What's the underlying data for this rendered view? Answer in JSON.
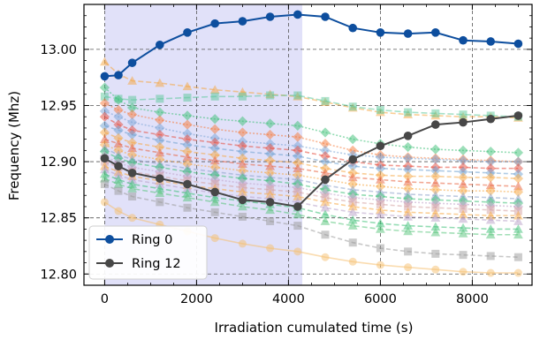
{
  "chart_data": {
    "type": "line",
    "xlabel": "Irradiation cumulated time (s)",
    "ylabel": "Frequency (Mhz)",
    "xlim": [
      -450,
      9300
    ],
    "ylim": [
      12.79,
      13.04
    ],
    "xticks": [
      0,
      2000,
      4000,
      6000,
      8000
    ],
    "xtick_labels": [
      "0",
      "2000",
      "4000",
      "6000",
      "8000"
    ],
    "yticks": [
      12.8,
      12.85,
      12.9,
      12.95,
      13.0
    ],
    "ytick_labels": [
      "12.80",
      "12.85",
      "12.90",
      "12.95",
      "13.00"
    ],
    "grid": true,
    "legend_position": "lower-left",
    "shaded_region": {
      "x_start": 0,
      "x_end": 4300,
      "color": "#c8c8f4"
    },
    "series": [
      {
        "name": "Ring 0",
        "color": "#0d4e9e",
        "x": [
          0,
          300,
          600,
          1200,
          1800,
          2400,
          3000,
          3600,
          4200,
          4800,
          5400,
          6000,
          6600,
          7200,
          7800,
          8400,
          9000
        ],
        "y": [
          12.976,
          12.977,
          12.988,
          13.004,
          13.015,
          13.023,
          13.025,
          13.029,
          13.031,
          13.029,
          13.019,
          13.015,
          13.014,
          13.015,
          13.008,
          13.007,
          13.005
        ]
      },
      {
        "name": "Ring 12",
        "color": "#474747",
        "x": [
          0,
          300,
          600,
          1200,
          1800,
          2400,
          3000,
          3600,
          4200,
          4800,
          5400,
          6000,
          6600,
          7200,
          7800,
          8400,
          9000
        ],
        "y": [
          12.903,
          12.896,
          12.89,
          12.885,
          12.88,
          12.873,
          12.866,
          12.864,
          12.86,
          12.884,
          12.902,
          12.914,
          12.923,
          12.933,
          12.935,
          12.938,
          12.941
        ]
      }
    ],
    "background_series": [
      {
        "color": "#f5a540",
        "marker": "triangle",
        "dash": "6,3",
        "y": [
          12.989,
          12.978,
          12.972,
          12.97,
          12.967,
          12.964,
          12.962,
          12.96,
          12.958,
          12.953,
          12.948,
          12.944,
          12.942,
          12.941,
          12.94,
          12.94,
          12.939
        ]
      },
      {
        "color": "#5cc89a",
        "marker": "square",
        "dash": "7,3",
        "y": [
          12.958,
          12.956,
          12.955,
          12.956,
          12.957,
          12.958,
          12.958,
          12.959,
          12.959,
          12.954,
          12.949,
          12.946,
          12.944,
          12.943,
          12.942,
          12.941,
          12.94
        ]
      },
      {
        "color": "#3bbf75",
        "marker": "diamond",
        "dash": "2,2",
        "y": [
          12.966,
          12.955,
          12.948,
          12.944,
          12.941,
          12.938,
          12.936,
          12.934,
          12.932,
          12.926,
          12.92,
          12.916,
          12.913,
          12.911,
          12.91,
          12.909,
          12.908
        ]
      },
      {
        "color": "#f57a3a",
        "marker": "diamond",
        "dash": "2,2",
        "y": [
          12.952,
          12.946,
          12.942,
          12.937,
          12.933,
          12.929,
          12.926,
          12.924,
          12.922,
          12.916,
          12.91,
          12.906,
          12.904,
          12.903,
          12.902,
          12.901,
          12.9
        ]
      },
      {
        "color": "#7aa4d6",
        "marker": "diamond",
        "dash": "2,2",
        "y": [
          12.945,
          12.94,
          12.935,
          12.93,
          12.925,
          12.921,
          12.918,
          12.916,
          12.914,
          12.91,
          12.906,
          12.904,
          12.903,
          12.902,
          12.901,
          12.9,
          12.9
        ]
      },
      {
        "color": "#e64b3b",
        "marker": "diamond",
        "dash": "5,3",
        "y": [
          12.94,
          12.933,
          12.928,
          12.924,
          12.92,
          12.917,
          12.914,
          12.912,
          12.91,
          12.905,
          12.9,
          12.897,
          12.896,
          12.895,
          12.895,
          12.894,
          12.894
        ]
      },
      {
        "color": "#6ea0d0",
        "marker": "diamond",
        "dash": "5,3",
        "y": [
          12.932,
          12.928,
          12.924,
          12.919,
          12.915,
          12.912,
          12.909,
          12.907,
          12.905,
          12.9,
          12.896,
          12.894,
          12.893,
          12.892,
          12.891,
          12.89,
          12.889
        ]
      },
      {
        "color": "#f5a540",
        "marker": "diamond",
        "dash": "5,3",
        "y": [
          12.926,
          12.921,
          12.917,
          12.913,
          12.909,
          12.906,
          12.903,
          12.901,
          12.899,
          12.894,
          12.89,
          12.888,
          12.887,
          12.887,
          12.886,
          12.886,
          12.885
        ]
      },
      {
        "color": "#e8603c",
        "marker": "triangle",
        "dash": "5,3",
        "y": [
          12.92,
          12.916,
          12.912,
          12.908,
          12.904,
          12.901,
          12.898,
          12.896,
          12.894,
          12.89,
          12.886,
          12.884,
          12.882,
          12.881,
          12.88,
          12.879,
          12.878
        ]
      },
      {
        "color": "#f5a540",
        "marker": "diamond",
        "dash": "2,2",
        "y": [
          12.915,
          12.91,
          12.906,
          12.902,
          12.898,
          12.895,
          12.892,
          12.89,
          12.888,
          12.884,
          12.88,
          12.878,
          12.876,
          12.875,
          12.874,
          12.874,
          12.873
        ]
      },
      {
        "color": "#8aa0c8",
        "marker": "triangle",
        "dash": "5,3",
        "y": [
          12.912,
          12.906,
          12.902,
          12.898,
          12.894,
          12.891,
          12.888,
          12.886,
          12.884,
          12.879,
          12.875,
          12.873,
          12.871,
          12.87,
          12.869,
          12.868,
          12.867
        ]
      },
      {
        "color": "#3bbf75",
        "marker": "diamond",
        "dash": "5,3",
        "y": [
          12.909,
          12.903,
          12.899,
          12.895,
          12.891,
          12.888,
          12.885,
          12.883,
          12.88,
          12.875,
          12.871,
          12.869,
          12.867,
          12.866,
          12.865,
          12.864,
          12.863
        ]
      },
      {
        "color": "#c0a0c8",
        "marker": "diamond",
        "dash": "2,2",
        "y": [
          12.905,
          12.899,
          12.895,
          12.891,
          12.887,
          12.884,
          12.881,
          12.879,
          12.877,
          12.872,
          12.868,
          12.866,
          12.864,
          12.863,
          12.862,
          12.861,
          12.86
        ]
      },
      {
        "color": "#d4a0a0",
        "marker": "square",
        "dash": "5,3",
        "y": [
          12.9,
          12.895,
          12.891,
          12.887,
          12.883,
          12.88,
          12.877,
          12.875,
          12.873,
          12.868,
          12.864,
          12.862,
          12.86,
          12.859,
          12.858,
          12.857,
          12.856
        ]
      },
      {
        "color": "#f5a540",
        "marker": "triangle",
        "dash": "5,3",
        "y": [
          12.896,
          12.891,
          12.887,
          12.883,
          12.879,
          12.876,
          12.873,
          12.871,
          12.869,
          12.864,
          12.86,
          12.857,
          12.855,
          12.854,
          12.853,
          12.852,
          12.852
        ]
      },
      {
        "color": "#b8a0c8",
        "marker": "triangle",
        "dash": "5,3",
        "y": [
          12.893,
          12.888,
          12.884,
          12.88,
          12.876,
          12.872,
          12.869,
          12.867,
          12.864,
          12.859,
          12.855,
          12.853,
          12.851,
          12.85,
          12.849,
          12.848,
          12.847
        ]
      },
      {
        "color": "#3bbf75",
        "marker": "triangle",
        "dash": "6,3",
        "y": [
          12.889,
          12.884,
          12.88,
          12.876,
          12.872,
          12.868,
          12.865,
          12.862,
          12.859,
          12.853,
          12.848,
          12.845,
          12.843,
          12.842,
          12.841,
          12.84,
          12.84
        ]
      },
      {
        "color": "#55c47a",
        "marker": "triangle",
        "dash": "6,3",
        "y": [
          12.885,
          12.88,
          12.876,
          12.872,
          12.868,
          12.864,
          12.86,
          12.857,
          12.853,
          12.847,
          12.843,
          12.84,
          12.838,
          12.837,
          12.836,
          12.835,
          12.835
        ]
      },
      {
        "color": "#9a9a9a",
        "marker": "square",
        "dash": "5,3",
        "y": [
          12.88,
          12.874,
          12.869,
          12.864,
          12.859,
          12.855,
          12.851,
          12.847,
          12.843,
          12.835,
          12.828,
          12.823,
          12.82,
          12.818,
          12.817,
          12.816,
          12.815
        ]
      },
      {
        "color": "#f5c070",
        "marker": "circle",
        "dash": "",
        "y": [
          12.864,
          12.856,
          12.85,
          12.844,
          12.838,
          12.832,
          12.827,
          12.823,
          12.82,
          12.815,
          12.811,
          12.808,
          12.806,
          12.804,
          12.802,
          12.801,
          12.801
        ]
      }
    ]
  }
}
